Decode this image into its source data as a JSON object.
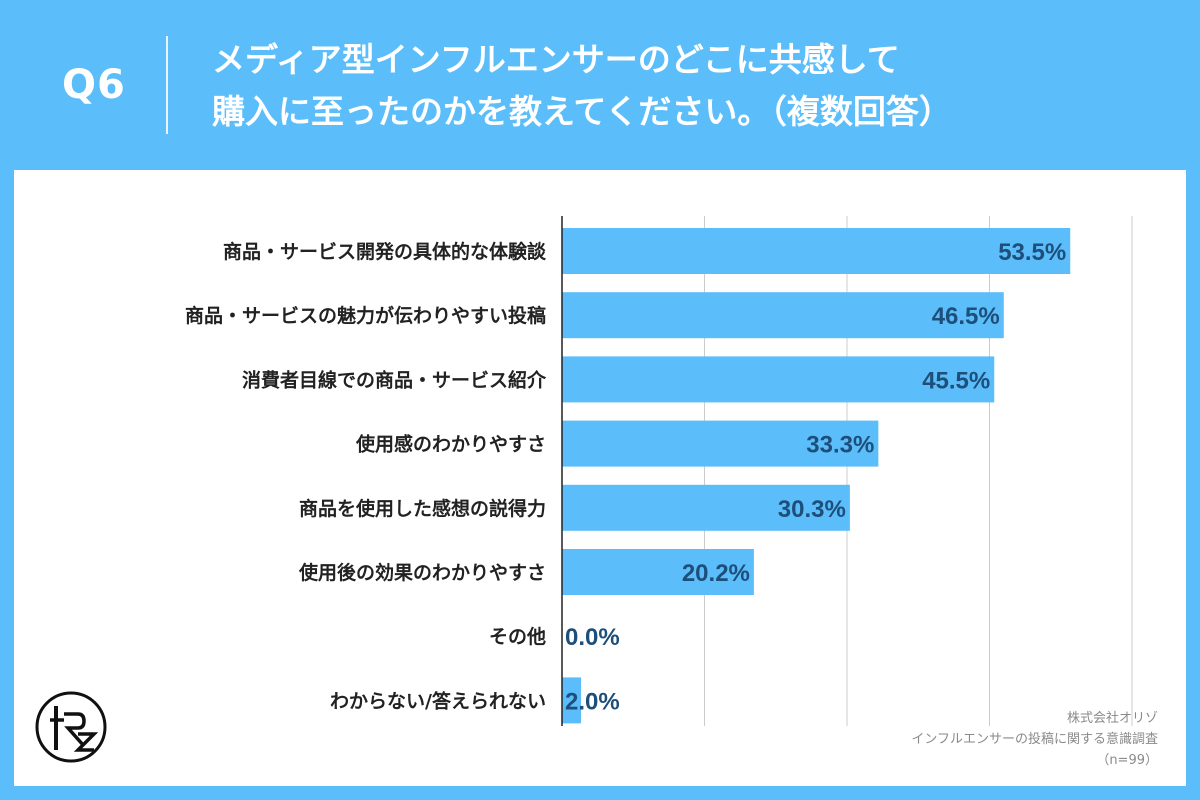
{
  "header": {
    "question_number": "Q6",
    "title_line1": "メディア型インフルエンサーのどこに共感して",
    "title_line2": "購入に至ったのかを教えてください。（複数回答）"
  },
  "footer": {
    "company": "株式会社オリゾ",
    "survey": "インフルエンサーの投稿に関する意識調査",
    "sample": "（n=99）"
  },
  "colors": {
    "background": "#5bbdf9",
    "bar": "#5bbdf9",
    "value_label": "#1d4f7a",
    "category_label": "#222222",
    "grid": "#cccccc"
  },
  "chart_data": {
    "type": "bar",
    "orientation": "horizontal",
    "categories": [
      "商品・サービス開発の具体的な体験談",
      "商品・サービスの魅力が伝わりやすい投稿",
      "消費者目線での商品・サービス紹介",
      "使用感のわかりやすさ",
      "商品を使用した感想の説得力",
      "使用後の効果のわかりやすさ",
      "その他",
      "わからない/答えられない"
    ],
    "values": [
      53.5,
      46.5,
      45.5,
      33.3,
      30.3,
      20.2,
      0.0,
      2.0
    ],
    "value_labels": [
      "53.5%",
      "46.5%",
      "45.5%",
      "33.3%",
      "30.3%",
      "20.2%",
      "0.0%",
      "2.0%"
    ],
    "xlim": [
      0,
      60
    ],
    "grid_step": 15,
    "grid": true,
    "legend": "none"
  }
}
